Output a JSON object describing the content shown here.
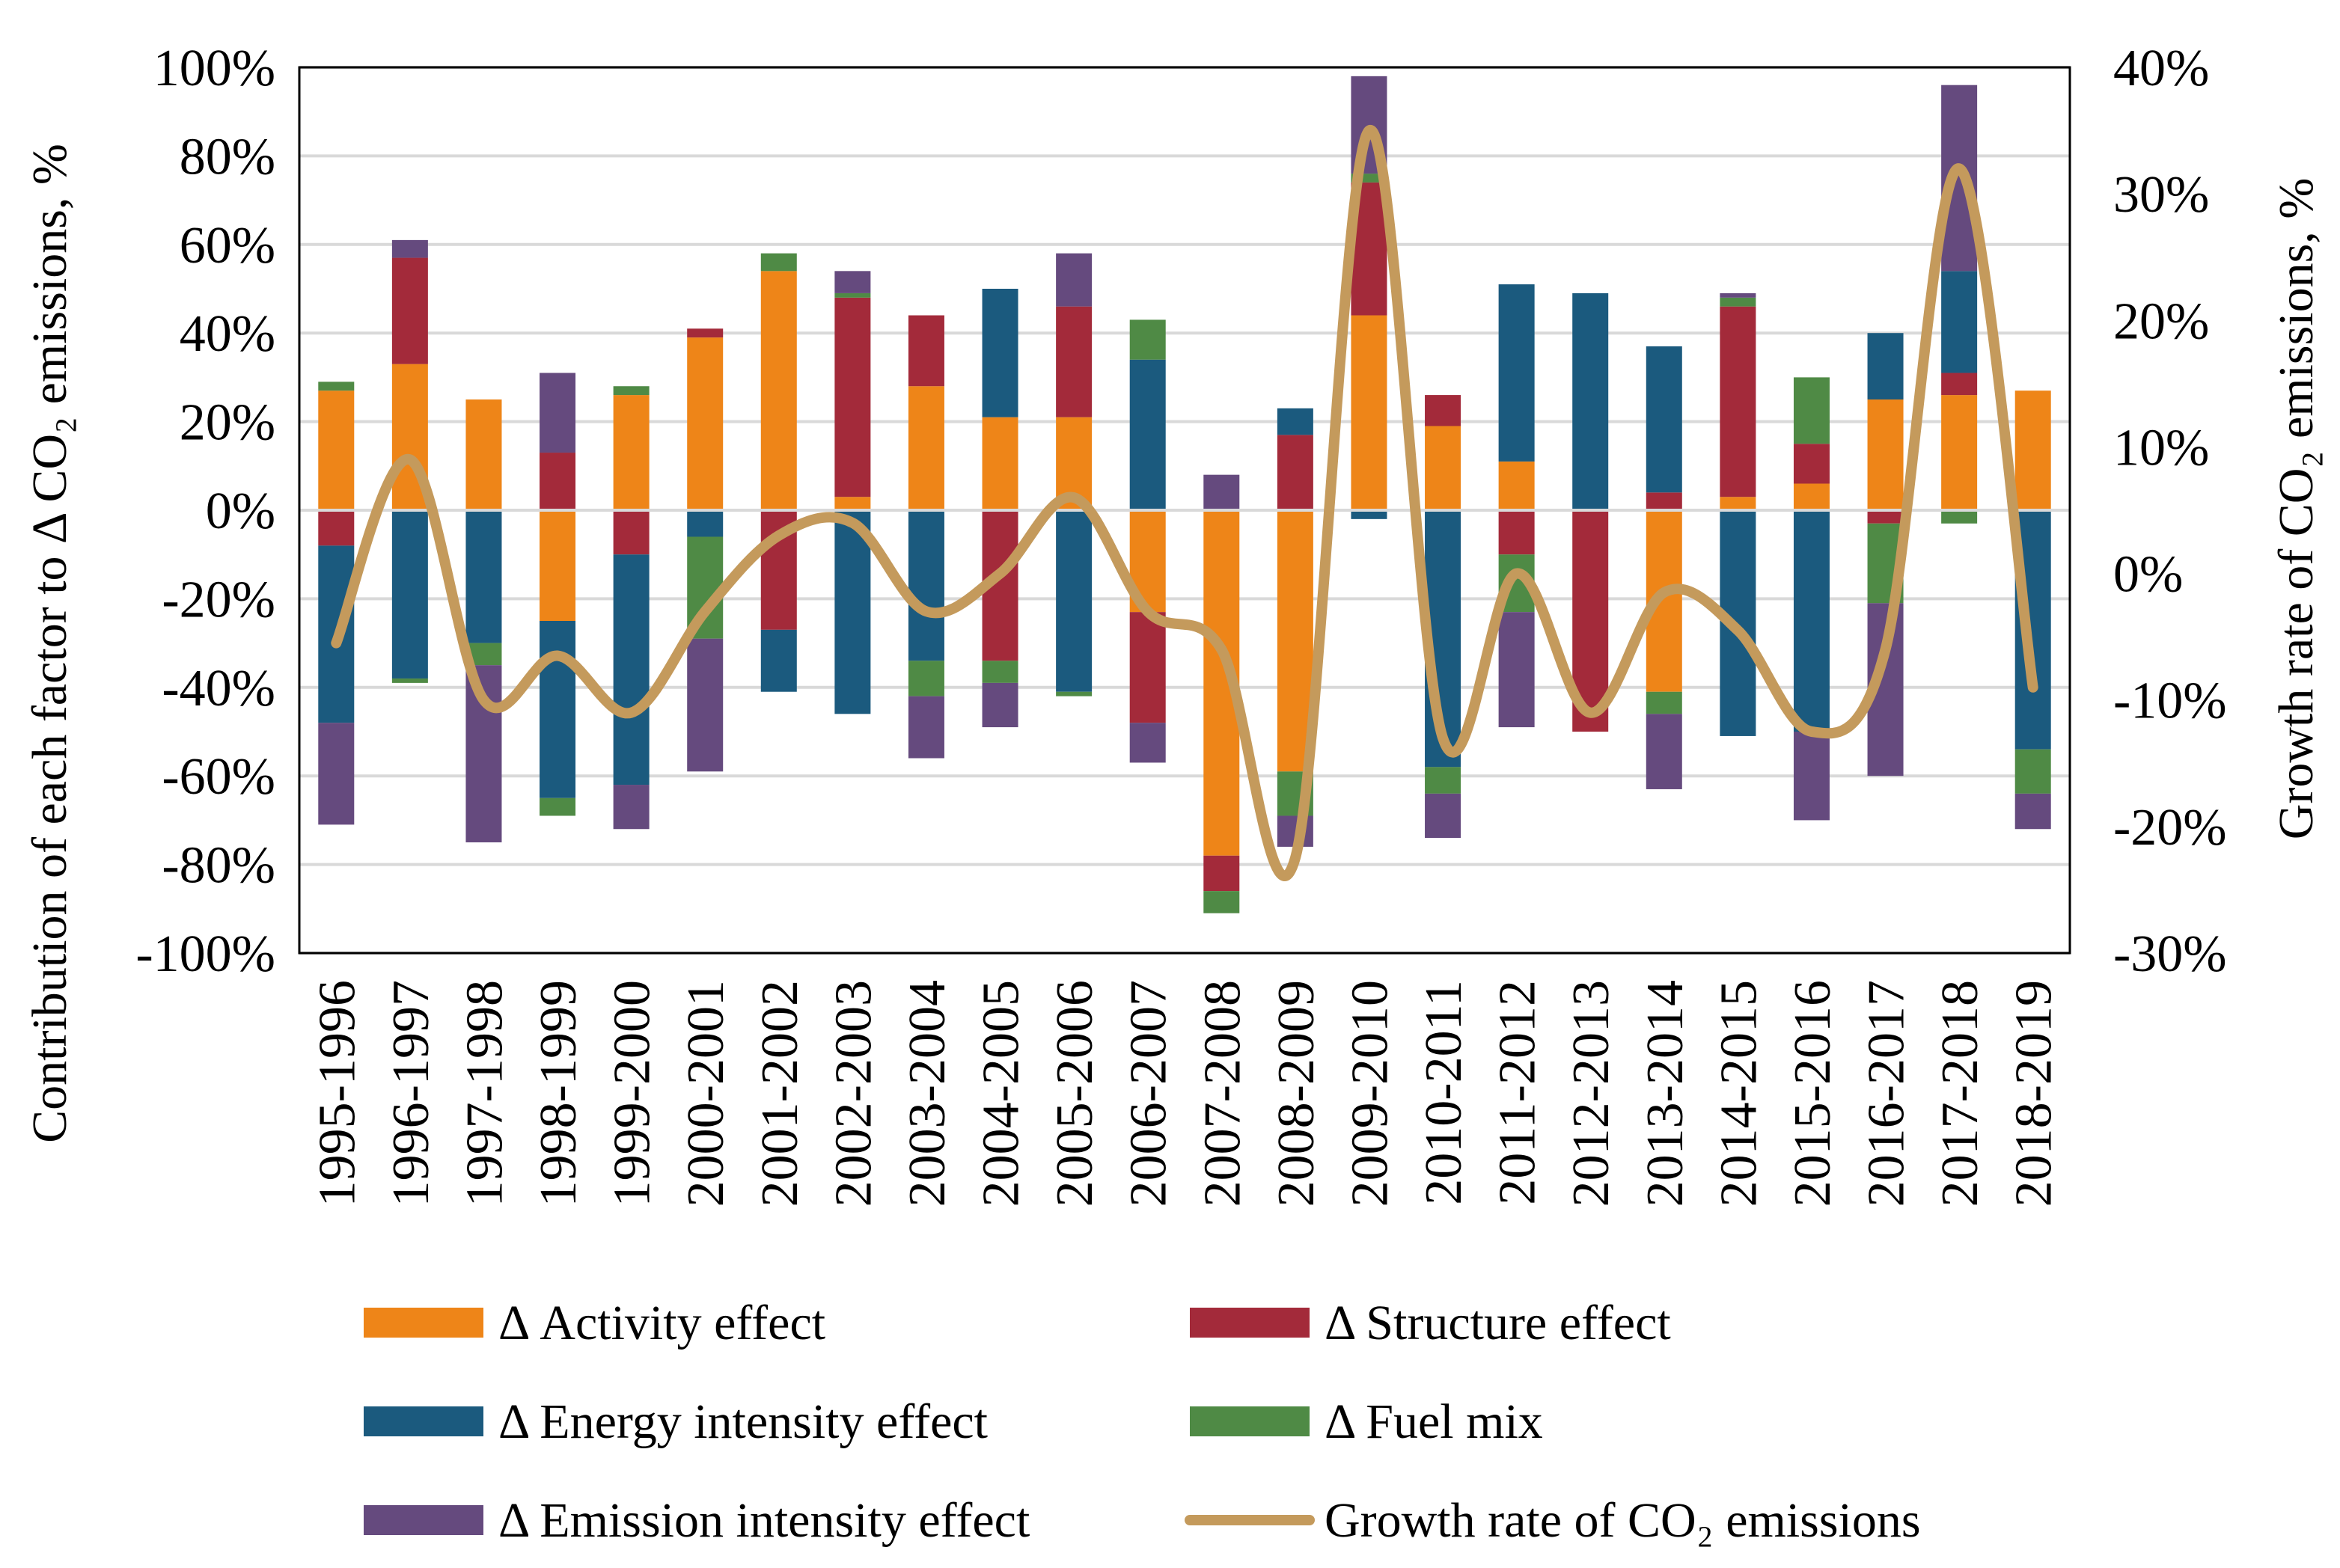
{
  "chart_data": {
    "type": "bar",
    "stacked": true,
    "categories": [
      "1995-1996",
      "1996-1997",
      "1997-1998",
      "1998-1999",
      "1999-2000",
      "2000-2001",
      "2001-2002",
      "2002-2003",
      "2003-2004",
      "2004-2005",
      "2005-2006",
      "2006-2007",
      "2007-2008",
      "2008-2009",
      "2009-2010",
      "2010-2011",
      "2011-2012",
      "2012-2013",
      "2013-2014",
      "2014-2015",
      "2015-2016",
      "2016-2017",
      "2017-2018",
      "2018-2019"
    ],
    "ylabel": "Contribution of each factor to Δ CO₂ emissions, %",
    "y2label": "Growth rate of CO₂ emissions, %",
    "ylim": [
      -100,
      100
    ],
    "y2lim": [
      -30,
      40
    ],
    "yticks": [
      "100%",
      "80%",
      "60%",
      "40%",
      "20%",
      "0%",
      "-20%",
      "-40%",
      "-60%",
      "-80%",
      "-100%"
    ],
    "y2ticks": [
      "40%",
      "30%",
      "20%",
      "10%",
      "0%",
      "-10%",
      "-20%",
      "-30%"
    ],
    "grid": true,
    "legend_position": "bottom",
    "series": [
      {
        "name": "Δ Activity effect",
        "color": "#EE8518",
        "axis": "left",
        "values": [
          27,
          33,
          25,
          -25,
          26,
          39,
          54,
          3,
          28,
          21,
          21,
          -23,
          -78,
          -59,
          44,
          19,
          11,
          0,
          -41,
          3,
          6,
          25,
          26,
          27
        ]
      },
      {
        "name": "Δ Structure effect",
        "color": "#A32A3A",
        "axis": "left",
        "values": [
          -8,
          24,
          0,
          13,
          -10,
          2,
          -27,
          45,
          16,
          -34,
          25,
          -25,
          -8,
          17,
          30,
          7,
          -10,
          -50,
          4,
          43,
          9,
          -3,
          5,
          0
        ]
      },
      {
        "name": "Δ Energy intensity effect",
        "color": "#1B5A7E",
        "axis": "left",
        "values": [
          -40,
          -38,
          -30,
          -40,
          -52,
          -6,
          -14,
          -46,
          -34,
          29,
          -41,
          34,
          0,
          6,
          -2,
          -58,
          40,
          49,
          33,
          -51,
          -50,
          15,
          23,
          -54
        ]
      },
      {
        "name": "Δ Fuel mix",
        "color": "#4F8A45",
        "axis": "left",
        "values": [
          2,
          -1,
          -5,
          -4,
          2,
          -23,
          4,
          1,
          -8,
          -5,
          -1,
          9,
          -5,
          -10,
          2,
          -6,
          -13,
          0,
          -5,
          2,
          15,
          -18,
          -3,
          -10
        ]
      },
      {
        "name": "Δ Emission intensity effect",
        "color": "#654A7E",
        "axis": "left",
        "values": [
          -23,
          4,
          -40,
          18,
          -10,
          -30,
          0,
          5,
          -14,
          -10,
          12,
          -9,
          8,
          -7,
          22,
          -10,
          -26,
          0,
          -17,
          1,
          -20,
          -39,
          42,
          -8
        ]
      },
      {
        "name": "Growth rate of CO₂ emissions",
        "color": "#C49A5C",
        "axis": "right",
        "type": "line",
        "values": [
          -5.5,
          9,
          -10,
          -6.5,
          -11,
          -3,
          3,
          4,
          -3,
          0,
          6,
          -3,
          -6,
          -22.5,
          35,
          -13,
          0,
          -11,
          -1.5,
          -4.5,
          -12.5,
          -6,
          32,
          -9
        ]
      }
    ]
  }
}
